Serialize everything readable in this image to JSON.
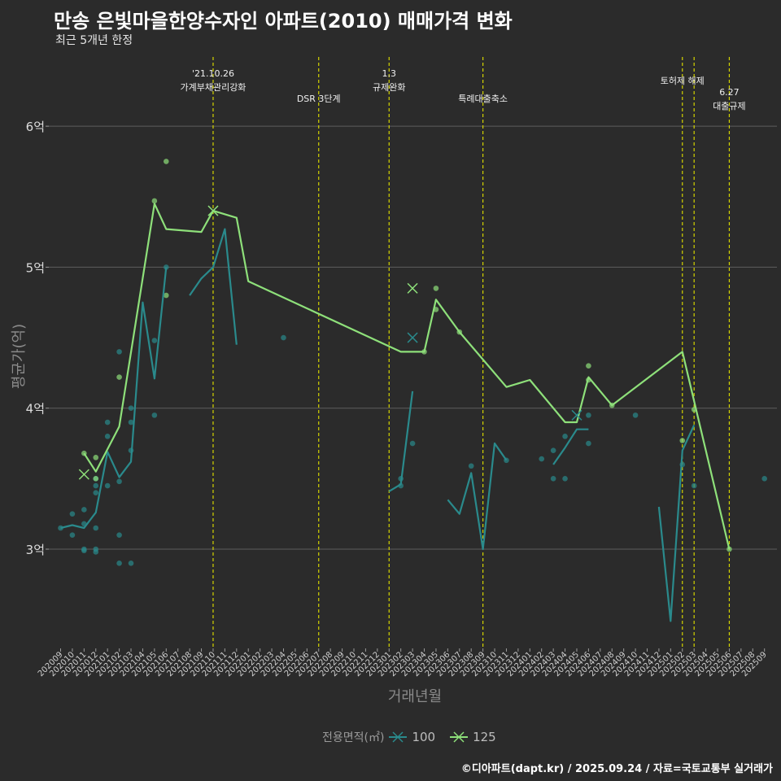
{
  "chart_data": {
    "type": "line",
    "title": "만송 은빛마을한양수자인 아파트(2010) 매매가격 변화",
    "subtitle": "최근 5개년 한정",
    "xlabel": "거래년월",
    "ylabel": "평균가(억)",
    "ylim": [
      2.3,
      6.4
    ],
    "yticks": [
      3,
      4,
      5,
      6
    ],
    "ytick_labels": [
      "3억",
      "4억",
      "5억",
      "6억"
    ],
    "categories": [
      "202009",
      "202010",
      "202011",
      "202012",
      "202101",
      "202102",
      "202103",
      "202104",
      "202105",
      "202106",
      "202107",
      "202108",
      "202109",
      "202110",
      "202111",
      "202112",
      "202201",
      "202202",
      "202203",
      "202204",
      "202205",
      "202206",
      "202207",
      "202208",
      "202209",
      "202210",
      "202211",
      "202212",
      "202301",
      "202302",
      "202303",
      "202304",
      "202305",
      "202306",
      "202307",
      "202308",
      "202309",
      "202310",
      "202311",
      "202312",
      "202401",
      "202402",
      "202403",
      "202404",
      "202405",
      "202406",
      "202407",
      "202408",
      "202409",
      "202410",
      "202411",
      "202412",
      "202501",
      "202502",
      "202503",
      "202504",
      "202505",
      "202506",
      "202507",
      "202508",
      "202509"
    ],
    "series": [
      {
        "name": "100",
        "color": "#2a8a8c",
        "line": [
          {
            "x": "202009",
            "y": 3.15
          },
          {
            "x": "202010",
            "y": 3.17
          },
          {
            "x": "202011",
            "y": 3.15
          },
          {
            "x": "202012",
            "y": 3.26
          },
          {
            "x": "202101",
            "y": 3.69
          },
          {
            "x": "202102",
            "y": 3.51
          },
          {
            "x": "202103",
            "y": 3.62
          },
          {
            "x": "202104",
            "y": 4.75
          },
          {
            "x": "202105",
            "y": 4.21
          },
          {
            "x": "202106",
            "y": 5.0
          },
          null,
          {
            "x": "202108",
            "y": 4.8
          },
          {
            "x": "202109",
            "y": 4.92
          },
          {
            "x": "202110",
            "y": 5.0
          },
          {
            "x": "202111",
            "y": 5.27
          },
          {
            "x": "202112",
            "y": 4.45
          },
          null,
          {
            "x": "202301",
            "y": 3.41
          },
          {
            "x": "202302",
            "y": 3.46
          },
          {
            "x": "202303",
            "y": 4.12
          },
          null,
          {
            "x": "202306",
            "y": 3.35
          },
          {
            "x": "202307",
            "y": 3.25
          },
          {
            "x": "202308",
            "y": 3.54
          },
          {
            "x": "202309",
            "y": 3.0
          },
          {
            "x": "202310",
            "y": 3.75
          },
          {
            "x": "202311",
            "y": 3.63
          },
          null,
          {
            "x": "202403",
            "y": 3.6
          },
          {
            "x": "202404",
            "y": 3.72
          },
          {
            "x": "202405",
            "y": 3.85
          },
          {
            "x": "202406",
            "y": 3.85
          },
          null,
          {
            "x": "202412",
            "y": 3.3
          },
          {
            "x": "202501",
            "y": 2.49
          },
          {
            "x": "202502",
            "y": 3.7
          },
          {
            "x": "202503",
            "y": 3.88
          }
        ],
        "points": [
          {
            "x": "202009",
            "y": 3.15
          },
          {
            "x": "202010",
            "y": 3.25
          },
          {
            "x": "202010",
            "y": 3.1
          },
          {
            "x": "202011",
            "y": 3.28
          },
          {
            "x": "202011",
            "y": 3.18
          },
          {
            "x": "202011",
            "y": 3.0
          },
          {
            "x": "202011",
            "y": 2.99
          },
          {
            "x": "202012",
            "y": 3.5
          },
          {
            "x": "202012",
            "y": 3.45
          },
          {
            "x": "202012",
            "y": 3.4
          },
          {
            "x": "202012",
            "y": 3.15
          },
          {
            "x": "202012",
            "y": 3.0
          },
          {
            "x": "202012",
            "y": 2.98
          },
          {
            "x": "202101",
            "y": 3.9
          },
          {
            "x": "202101",
            "y": 3.8
          },
          {
            "x": "202101",
            "y": 3.45
          },
          {
            "x": "202102",
            "y": 4.4
          },
          {
            "x": "202102",
            "y": 3.48
          },
          {
            "x": "202102",
            "y": 3.1
          },
          {
            "x": "202102",
            "y": 2.9
          },
          {
            "x": "202103",
            "y": 4.0
          },
          {
            "x": "202103",
            "y": 3.9
          },
          {
            "x": "202103",
            "y": 3.7
          },
          {
            "x": "202103",
            "y": 2.9
          },
          {
            "x": "202105",
            "y": 4.48
          },
          {
            "x": "202105",
            "y": 3.95
          },
          {
            "x": "202106",
            "y": 5.0
          },
          {
            "x": "202204",
            "y": 4.5
          },
          {
            "x": "202302",
            "y": 3.5
          },
          {
            "x": "202302",
            "y": 3.45
          },
          {
            "x": "202303",
            "y": 3.75
          },
          {
            "x": "202308",
            "y": 3.59
          },
          {
            "x": "202311",
            "y": 3.63
          },
          {
            "x": "202402",
            "y": 3.64
          },
          {
            "x": "202403",
            "y": 3.7
          },
          {
            "x": "202403",
            "y": 3.5
          },
          {
            "x": "202404",
            "y": 3.8
          },
          {
            "x": "202404",
            "y": 3.5
          },
          {
            "x": "202406",
            "y": 3.95
          },
          {
            "x": "202406",
            "y": 3.75
          },
          {
            "x": "202410",
            "y": 3.95
          },
          {
            "x": "202502",
            "y": 3.6
          },
          {
            "x": "202503",
            "y": 3.45
          },
          {
            "x": "202509",
            "y": 3.5
          }
        ],
        "x_markers": [
          {
            "x": "202303",
            "y": 4.5
          },
          {
            "x": "202405",
            "y": 3.95
          }
        ]
      },
      {
        "name": "125",
        "color": "#8ee07a",
        "line": [
          {
            "x": "202011",
            "y": 3.68
          },
          {
            "x": "202012",
            "y": 3.55
          },
          {
            "x": "202102",
            "y": 3.87
          },
          {
            "x": "202105",
            "y": 5.45
          },
          {
            "x": "202106",
            "y": 5.27
          },
          {
            "x": "202109",
            "y": 5.25
          },
          {
            "x": "202110",
            "y": 5.4
          },
          {
            "x": "202112",
            "y": 5.35
          },
          {
            "x": "202201",
            "y": 4.9
          },
          {
            "x": "202302",
            "y": 4.4
          },
          {
            "x": "202304",
            "y": 4.4
          },
          {
            "x": "202305",
            "y": 4.77
          },
          {
            "x": "202307",
            "y": 4.54
          },
          {
            "x": "202311",
            "y": 4.15
          },
          {
            "x": "202401",
            "y": 4.2
          },
          {
            "x": "202404",
            "y": 3.9
          },
          {
            "x": "202405",
            "y": 3.9
          },
          {
            "x": "202406",
            "y": 4.22
          },
          {
            "x": "202408",
            "y": 4.02
          },
          {
            "x": "202502",
            "y": 4.4
          },
          {
            "x": "202506",
            "y": 3.0
          }
        ],
        "points": [
          {
            "x": "202011",
            "y": 3.68
          },
          {
            "x": "202012",
            "y": 3.65
          },
          {
            "x": "202012",
            "y": 3.5
          },
          {
            "x": "202102",
            "y": 4.22
          },
          {
            "x": "202105",
            "y": 5.47
          },
          {
            "x": "202106",
            "y": 5.75
          },
          {
            "x": "202106",
            "y": 4.8
          },
          {
            "x": "202304",
            "y": 4.4
          },
          {
            "x": "202305",
            "y": 4.85
          },
          {
            "x": "202305",
            "y": 4.7
          },
          {
            "x": "202307",
            "y": 4.54
          },
          {
            "x": "202406",
            "y": 4.3
          },
          {
            "x": "202406",
            "y": 4.2
          },
          {
            "x": "202408",
            "y": 4.02
          },
          {
            "x": "202502",
            "y": 3.77
          },
          {
            "x": "202503",
            "y": 3.99
          },
          {
            "x": "202506",
            "y": 3.0
          }
        ],
        "x_markers": [
          {
            "x": "202011",
            "y": 3.53
          },
          {
            "x": "202110",
            "y": 5.4
          },
          {
            "x": "202303",
            "y": 4.85
          }
        ]
      }
    ],
    "events": [
      {
        "x": "202110",
        "label1": "'21.10.26",
        "label2": "가계부채관리강화"
      },
      {
        "x": "202207",
        "label1": "DSR 3단계",
        "label2": ""
      },
      {
        "x": "202301",
        "label1": "1.3",
        "label2": "규제완화"
      },
      {
        "x": "202309",
        "label1": "특례대출축소",
        "label2": ""
      },
      {
        "x": "202502",
        "label1": "토허제 해제",
        "label2": ""
      },
      {
        "x": "202503",
        "label1": "",
        "label2": ""
      },
      {
        "x": "202506",
        "label1": "6.27",
        "label2": "대출규제"
      }
    ],
    "legend_title": "전용면적(㎡)"
  },
  "footer": "©디아파트(dapt.kr) / 2025.09.24 / 자료=국토교통부 실거래가",
  "colors": {
    "background": "#2b2b2b",
    "grid": "#5e5e5e",
    "event_line": "#d4d400"
  }
}
